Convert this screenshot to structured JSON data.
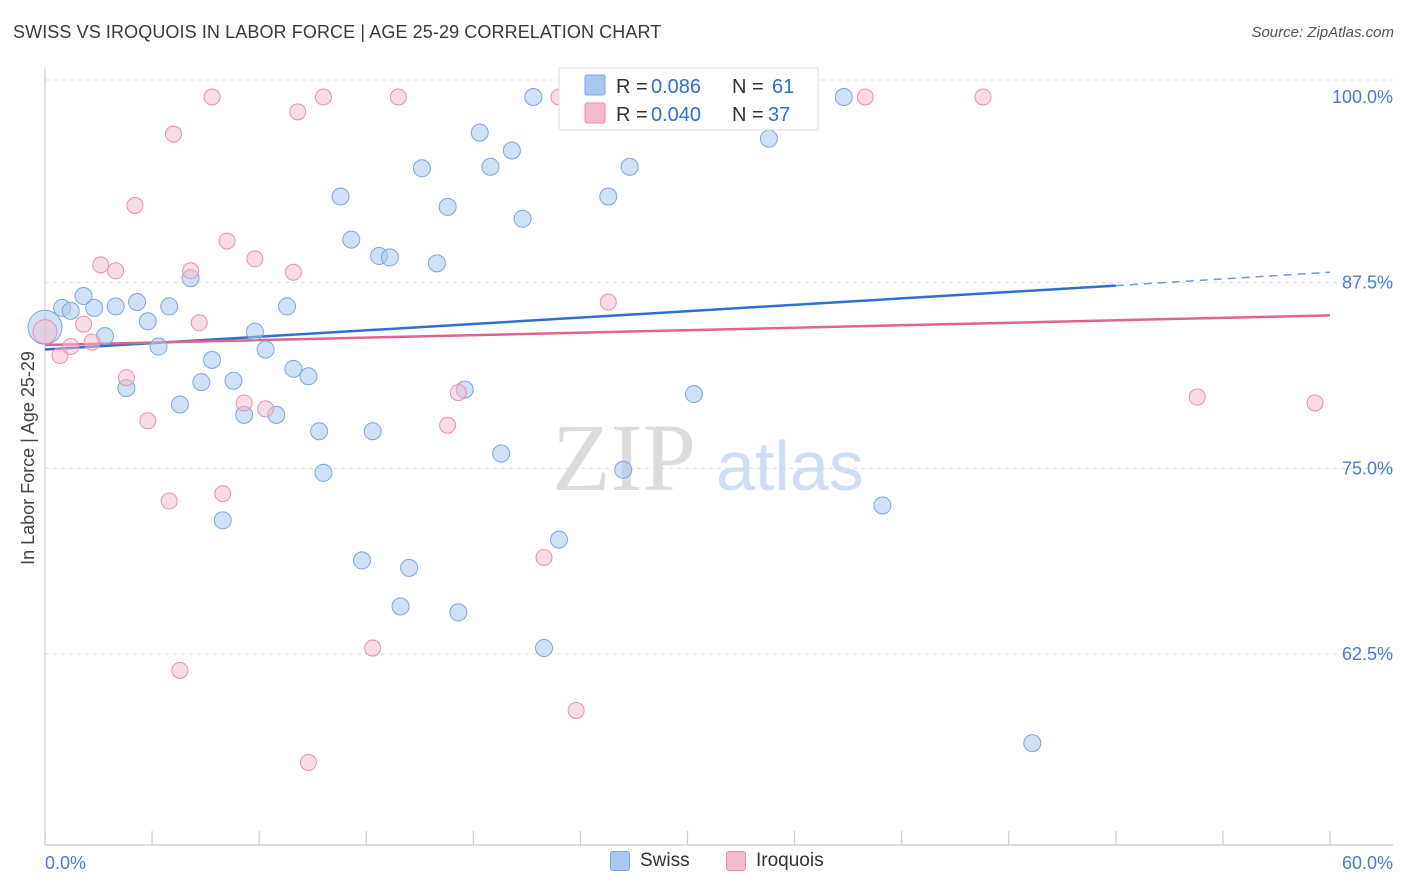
{
  "title": "SWISS VS IROQUOIS IN LABOR FORCE | AGE 25-29 CORRELATION CHART",
  "source": "Source: ZipAtlas.com",
  "watermark": {
    "zip": "ZIP",
    "atlas": "atlas"
  },
  "colors": {
    "swiss_fill": "#a9c8f0",
    "swiss_stroke": "#7aa6e0",
    "swiss_line": "#2f6fd1",
    "iroquois_fill": "#f6b9cb",
    "iroquois_stroke": "#ea8fab",
    "iroquois_line": "#e0648e",
    "tick_text": "#4a7bd0",
    "grid": "#dddddd"
  },
  "legend": {
    "swiss": {
      "r_label": "R =",
      "r_value": "0.086",
      "n_label": "N =",
      "n_value": "61"
    },
    "iroquois": {
      "r_label": "R =",
      "r_value": "0.040",
      "n_label": "N =",
      "n_value": "37"
    }
  },
  "bottom_legend": {
    "swiss": "Swiss",
    "iroquois": "Iroquois"
  },
  "chart_data": {
    "type": "scatter",
    "title": "SWISS VS IROQUOIS IN LABOR FORCE | AGE 25-29 CORRELATION CHART",
    "xlabel": "",
    "ylabel": "In Labor Force | Age 25-29",
    "xlim": [
      0,
      60
    ],
    "ylim": [
      50,
      101.5
    ],
    "x_tick_labels": [
      {
        "value": 0,
        "label": "0.0%"
      },
      {
        "value": 60,
        "label": "60.0%"
      }
    ],
    "y_tick_labels": [
      {
        "value": 62.5,
        "label": "62.5%"
      },
      {
        "value": 75.0,
        "label": "75.0%"
      },
      {
        "value": 87.5,
        "label": "87.5%"
      },
      {
        "value": 100.0,
        "label": "100.0%"
      }
    ],
    "grid": true,
    "legend_position": "top-center",
    "series": [
      {
        "name": "Swiss",
        "trend": {
          "x0": 0,
          "y0": 83.0,
          "x1": 50.0,
          "y1": 87.3,
          "dashed_to_x": 60,
          "dashed_to_y": 88.2
        },
        "points": [
          [
            0.0,
            84.5
          ],
          [
            0.8,
            85.8
          ],
          [
            1.2,
            85.6
          ],
          [
            1.8,
            86.6
          ],
          [
            2.3,
            85.8
          ],
          [
            2.8,
            83.9
          ],
          [
            3.3,
            85.9
          ],
          [
            3.8,
            80.4
          ],
          [
            4.3,
            86.2
          ],
          [
            4.8,
            84.9
          ],
          [
            5.3,
            83.2
          ],
          [
            5.8,
            85.9
          ],
          [
            6.3,
            79.3
          ],
          [
            6.8,
            87.8
          ],
          [
            7.3,
            80.8
          ],
          [
            7.8,
            82.3
          ],
          [
            8.3,
            71.5
          ],
          [
            8.8,
            80.9
          ],
          [
            9.3,
            78.6
          ],
          [
            9.8,
            84.2
          ],
          [
            10.3,
            83.0
          ],
          [
            10.8,
            78.6
          ],
          [
            11.3,
            85.9
          ],
          [
            11.6,
            81.7
          ],
          [
            12.3,
            81.2
          ],
          [
            12.8,
            77.5
          ],
          [
            13.0,
            74.7
          ],
          [
            13.8,
            93.3
          ],
          [
            14.3,
            90.4
          ],
          [
            14.8,
            68.8
          ],
          [
            15.3,
            77.5
          ],
          [
            15.6,
            89.3
          ],
          [
            16.1,
            89.2
          ],
          [
            16.6,
            65.7
          ],
          [
            17.0,
            68.3
          ],
          [
            17.6,
            95.2
          ],
          [
            18.3,
            88.8
          ],
          [
            18.8,
            92.6
          ],
          [
            19.3,
            65.3
          ],
          [
            19.6,
            80.3
          ],
          [
            20.3,
            97.6
          ],
          [
            20.8,
            95.3
          ],
          [
            21.3,
            76.0
          ],
          [
            21.8,
            96.4
          ],
          [
            22.3,
            91.8
          ],
          [
            22.8,
            100.0
          ],
          [
            23.3,
            62.9
          ],
          [
            24.0,
            70.2
          ],
          [
            24.8,
            100.0
          ],
          [
            25.8,
            100.0
          ],
          [
            26.3,
            93.3
          ],
          [
            27.0,
            74.9
          ],
          [
            27.3,
            95.3
          ],
          [
            29.8,
            100.0
          ],
          [
            30.3,
            80.0
          ],
          [
            31.0,
            100.0
          ],
          [
            33.8,
            97.2
          ],
          [
            37.3,
            100.0
          ],
          [
            39.1,
            72.5
          ],
          [
            46.1,
            56.5
          ],
          [
            35.0,
            100.0
          ]
        ]
      },
      {
        "name": "Iroquois",
        "trend": {
          "x0": 0,
          "y0": 83.3,
          "x1": 60,
          "y1": 85.3
        },
        "points": [
          [
            0.0,
            84.2
          ],
          [
            0.7,
            82.6
          ],
          [
            1.2,
            83.2
          ],
          [
            1.8,
            84.7
          ],
          [
            2.2,
            83.5
          ],
          [
            2.6,
            88.7
          ],
          [
            3.3,
            88.3
          ],
          [
            3.8,
            81.1
          ],
          [
            4.2,
            92.7
          ],
          [
            4.8,
            78.2
          ],
          [
            5.8,
            72.8
          ],
          [
            6.0,
            97.5
          ],
          [
            6.3,
            61.4
          ],
          [
            6.8,
            88.3
          ],
          [
            7.2,
            84.8
          ],
          [
            7.8,
            100.0
          ],
          [
            8.3,
            73.3
          ],
          [
            8.5,
            90.3
          ],
          [
            9.3,
            79.4
          ],
          [
            9.8,
            89.1
          ],
          [
            10.3,
            79.0
          ],
          [
            11.6,
            88.2
          ],
          [
            11.8,
            99.0
          ],
          [
            12.3,
            55.2
          ],
          [
            13.0,
            100.0
          ],
          [
            15.3,
            62.9
          ],
          [
            16.5,
            100.0
          ],
          [
            18.8,
            77.9
          ],
          [
            19.3,
            80.1
          ],
          [
            23.3,
            69.0
          ],
          [
            24.0,
            100.0
          ],
          [
            24.8,
            58.7
          ],
          [
            26.3,
            86.2
          ],
          [
            38.3,
            100.0
          ],
          [
            43.8,
            100.0
          ],
          [
            53.8,
            79.8
          ],
          [
            59.3,
            79.4
          ]
        ]
      }
    ]
  }
}
